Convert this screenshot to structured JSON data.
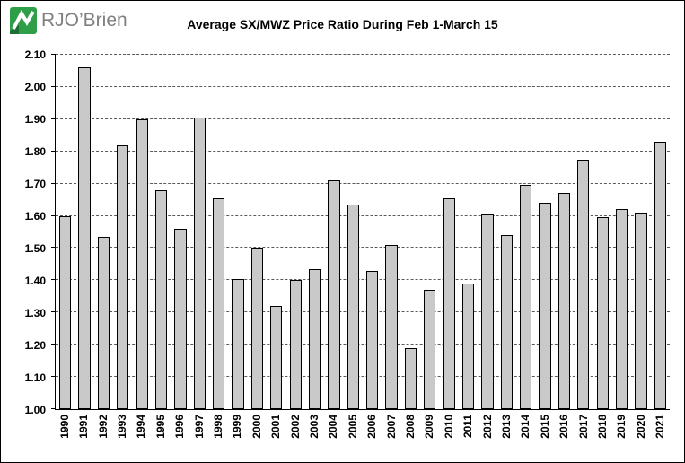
{
  "logo": {
    "text": "RJO’Brien",
    "mark_color": "#2f9e48",
    "mark_dark": "#1e6f36",
    "text_color": "#7f7f7f"
  },
  "chart_data": {
    "type": "bar",
    "title": "Average SX/MWZ Price Ratio During Feb 1-March 15",
    "xlabel": "",
    "ylabel": "",
    "categories": [
      "1990",
      "1991",
      "1992",
      "1993",
      "1994",
      "1995",
      "1996",
      "1997",
      "1998",
      "1999",
      "2000",
      "2001",
      "2002",
      "2003",
      "2004",
      "2005",
      "2006",
      "2007",
      "2008",
      "2009",
      "2010",
      "2011",
      "2012",
      "2013",
      "2014",
      "2015",
      "2016",
      "2017",
      "2018",
      "2019",
      "2020",
      "2021"
    ],
    "values": [
      1.6,
      2.06,
      1.535,
      1.82,
      1.9,
      1.68,
      1.56,
      1.905,
      1.655,
      1.405,
      1.5,
      1.32,
      1.4,
      1.435,
      1.71,
      1.635,
      1.43,
      1.51,
      1.19,
      1.37,
      1.655,
      1.39,
      1.605,
      1.54,
      1.695,
      1.64,
      1.67,
      1.775,
      1.595,
      1.62,
      1.61,
      1.83
    ],
    "ylim": [
      1.0,
      2.1
    ],
    "ytick_step": 0.1,
    "ytick_format": "two-decimals",
    "grid": "horizontal-dashed",
    "legend": "none",
    "bar_color": "#c9c9c9",
    "bar_border_color": "#000000"
  }
}
